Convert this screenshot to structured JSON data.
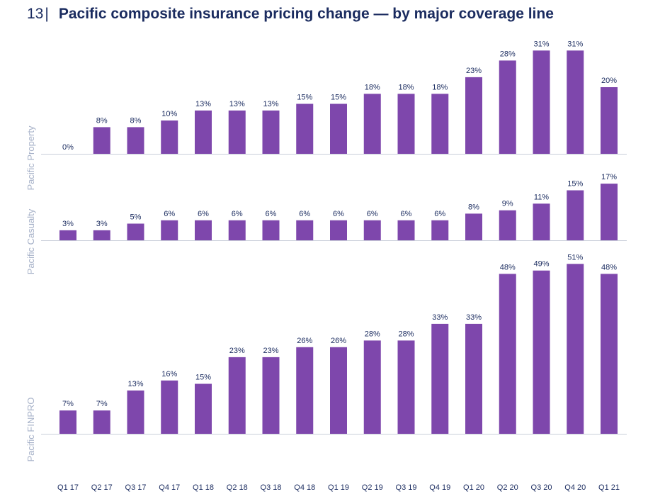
{
  "header": {
    "page_number": "13",
    "separator": "|",
    "title": "Pacific composite insurance pricing change — by major coverage line"
  },
  "colors": {
    "bar": "#7e47ac",
    "text": "#1a2b5f",
    "panel_label": "#a6b1c8"
  },
  "chart_data": {
    "type": "bar",
    "title": "Pacific composite insurance pricing change — by major coverage line",
    "categories": [
      "Q1 17",
      "Q2 17",
      "Q3 17",
      "Q4 17",
      "Q1 18",
      "Q2 18",
      "Q3 18",
      "Q4 18",
      "Q1 19",
      "Q2 19",
      "Q3 19",
      "Q4 19",
      "Q1 20",
      "Q2 20",
      "Q3 20",
      "Q4 20",
      "Q1 21"
    ],
    "unit": "%",
    "series": [
      {
        "name": "Pacific Property",
        "values": [
          0,
          8,
          8,
          10,
          13,
          13,
          13,
          15,
          15,
          18,
          18,
          18,
          23,
          28,
          31,
          31,
          20
        ],
        "labels": [
          "0%",
          "8%",
          "8%",
          "10%",
          "13%",
          "13%",
          "13%",
          "15%",
          "15%",
          "18%",
          "18%",
          "18%",
          "23%",
          "28%",
          "31%",
          "31%",
          "20%"
        ]
      },
      {
        "name": "Pacific Casualty",
        "values": [
          3,
          3,
          5,
          6,
          6,
          6,
          6,
          6,
          6,
          6,
          6,
          6,
          8,
          9,
          11,
          15,
          17
        ],
        "labels": [
          "3%",
          "3%",
          "5%",
          "6%",
          "6%",
          "6%",
          "6%",
          "6%",
          "6%",
          "6%",
          "6%",
          "6%",
          "8%",
          "9%",
          "11%",
          "15%",
          "17%"
        ]
      },
      {
        "name": "Pacific FINPRO",
        "values": [
          7,
          7,
          13,
          16,
          15,
          23,
          23,
          26,
          26,
          28,
          28,
          33,
          33,
          48,
          49,
          51,
          48
        ],
        "labels": [
          "7%",
          "7%",
          "13%",
          "16%",
          "15%",
          "23%",
          "23%",
          "26%",
          "26%",
          "28%",
          "28%",
          "33%",
          "33%",
          "48%",
          "49%",
          "51%",
          "48%"
        ]
      }
    ],
    "legend": "none",
    "grid": false
  }
}
